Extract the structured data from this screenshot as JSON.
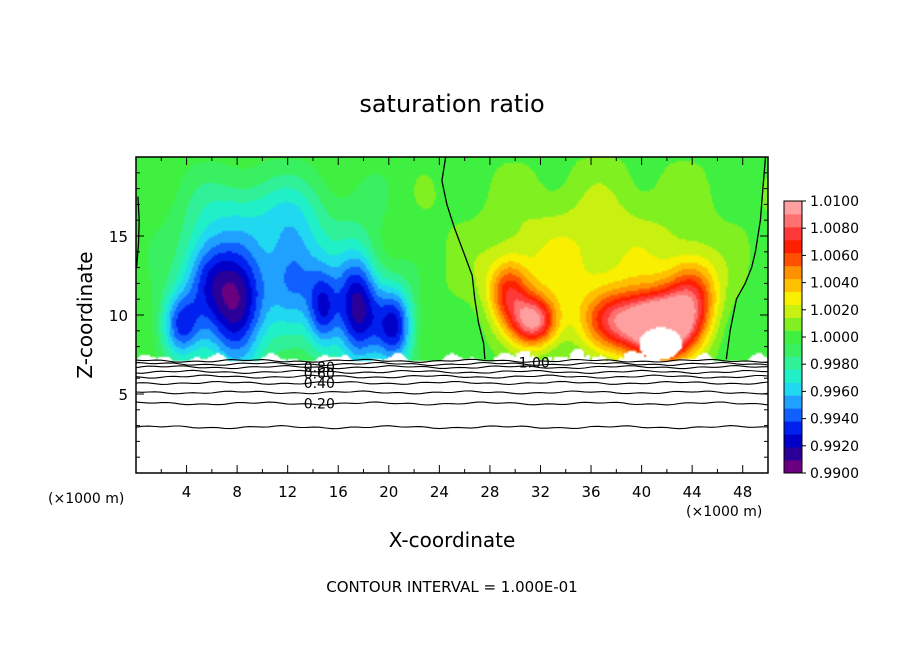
{
  "chart_data": {
    "type": "heatmap",
    "title": "saturation ratio",
    "xlabel": "X-coordinate",
    "ylabel": "Z-coordinate",
    "x_unit_label": "(×1000 m)",
    "x_unit_label_right": "(×1000 m)",
    "footer": "CONTOUR INTERVAL = 1.000E-01",
    "xlim": [
      0,
      50
    ],
    "ylim": [
      0,
      20
    ],
    "x_ticks": [
      4,
      8,
      12,
      16,
      20,
      24,
      28,
      32,
      36,
      40,
      44,
      48
    ],
    "y_ticks": [
      5,
      10,
      15
    ],
    "colorbar": {
      "min": 0.99,
      "max": 1.01,
      "step": 0.001,
      "labels": [
        "1.0100",
        "1.0080",
        "1.0060",
        "1.0040",
        "1.0020",
        "1.0000",
        "0.9980",
        "0.9960",
        "0.9940",
        "0.9920",
        "0.9900"
      ],
      "colors": [
        "#6a0080",
        "#2a0098",
        "#0000c8",
        "#0020f0",
        "#1060ff",
        "#20a0ff",
        "#20d8f0",
        "#20f0c8",
        "#30f098",
        "#38f060",
        "#40f040",
        "#80f020",
        "#c8f010",
        "#f8f000",
        "#ffc000",
        "#ff9000",
        "#ff5000",
        "#ff2000",
        "#ff3838",
        "#ff7070",
        "#ffa0a0"
      ]
    },
    "cloud_base_z": 7.2,
    "contour_labels": [
      {
        "label": "0.80",
        "x": 14.5,
        "z": 6.7
      },
      {
        "label": "0.60",
        "x": 14.5,
        "z": 6.3
      },
      {
        "label": "0.40",
        "x": 14.5,
        "z": 5.7
      },
      {
        "label": "0.20",
        "x": 14.5,
        "z": 4.4
      },
      {
        "label": "1.00",
        "x": 31.5,
        "z": 7.0
      }
    ],
    "contour_lines_z": [
      2.9,
      4.4,
      5.1,
      5.7,
      6.1,
      6.4,
      6.7,
      6.9,
      7.1
    ],
    "features": {
      "dry_blobs": [
        {
          "x": 8,
          "z": 10.5,
          "sx": 2.3,
          "sz": 4.0,
          "amp": -0.0085
        },
        {
          "x": 5.5,
          "z": 12.5,
          "sx": 2.0,
          "sz": 2.8,
          "amp": -0.005
        },
        {
          "x": 12.5,
          "z": 12.5,
          "sx": 2.3,
          "sz": 3.4,
          "amp": -0.0055
        },
        {
          "x": 17.5,
          "z": 10.5,
          "sx": 1.8,
          "sz": 3.6,
          "amp": -0.0085
        },
        {
          "x": 14.8,
          "z": 10.2,
          "sx": 1.2,
          "sz": 2.6,
          "amp": -0.0055
        },
        {
          "x": 20.5,
          "z": 9.3,
          "sx": 1.5,
          "sz": 2.6,
          "amp": -0.007
        },
        {
          "x": 3.5,
          "z": 9.3,
          "sx": 1.6,
          "sz": 2.2,
          "amp": -0.006
        },
        {
          "x": 10,
          "z": 16.5,
          "sx": 6,
          "sz": 2.5,
          "amp": -0.0025
        }
      ],
      "moist_blobs": [
        {
          "x": 41.5,
          "z": 9.2,
          "sx": 2.6,
          "sz": 2.1,
          "amp": 0.0125
        },
        {
          "x": 38.0,
          "z": 9.6,
          "sx": 2.6,
          "sz": 1.9,
          "amp": 0.006
        },
        {
          "x": 44.0,
          "z": 11.2,
          "sx": 2.0,
          "sz": 2.4,
          "amp": 0.006
        },
        {
          "x": 29.5,
          "z": 11.5,
          "sx": 1.6,
          "sz": 2.0,
          "amp": 0.0055
        },
        {
          "x": 31.5,
          "z": 9.6,
          "sx": 1.8,
          "sz": 1.6,
          "amp": 0.0085
        },
        {
          "x": 35.0,
          "z": 12.5,
          "sx": 8.0,
          "sz": 4.0,
          "amp": 0.002
        },
        {
          "x": 37.5,
          "z": 16.0,
          "sx": 10.0,
          "sz": 4.0,
          "amp": 0.001
        }
      ]
    }
  }
}
